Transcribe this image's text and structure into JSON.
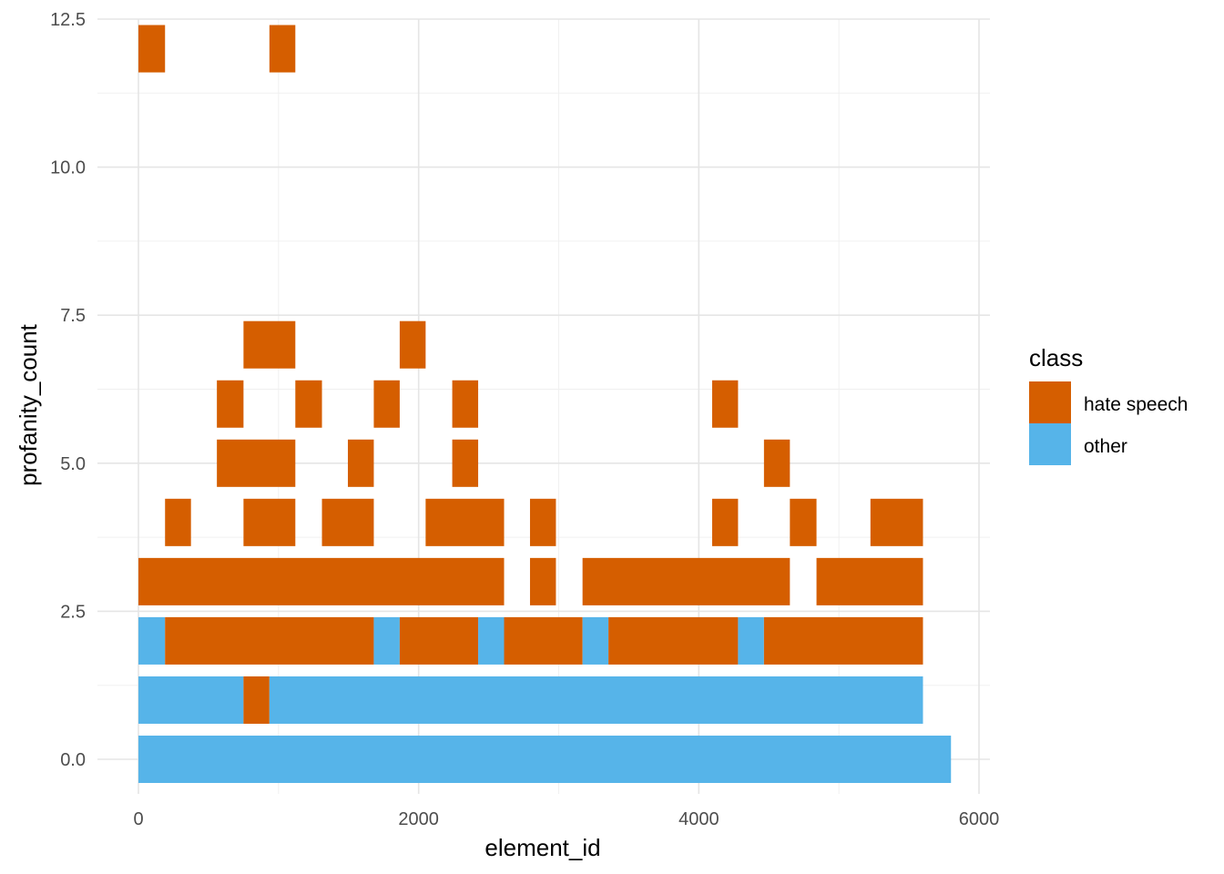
{
  "chart_data": {
    "type": "heatmap",
    "title": "",
    "xlabel": "element_id",
    "ylabel": "profanity_count",
    "xlim": [
      -300,
      6060
    ],
    "ylim": [
      -1.2,
      12.5
    ],
    "x_ticks": [
      0,
      2000,
      4000,
      6000
    ],
    "x_minor": [
      1000,
      3000,
      5000
    ],
    "y_ticks": [
      0.0,
      2.5,
      5.0,
      7.5,
      10.0,
      12.5
    ],
    "y_tick_labels": [
      "0.0",
      "2.5",
      "5.0",
      "7.5",
      "10.0",
      "12.5"
    ],
    "y_minor": [
      1.25,
      3.75,
      6.25,
      8.75,
      11.25
    ],
    "grid": true,
    "legend": {
      "title": "class",
      "placement": "right",
      "entries": [
        {
          "label": "hate speech",
          "color": "#D55E00"
        },
        {
          "label": "other",
          "color": "#56B4E9"
        }
      ]
    },
    "bin_width_x": 185,
    "bin_height_y": 0.8,
    "tiles": [
      {
        "x0": 0,
        "x1": 5800,
        "y": 0,
        "class": "other"
      },
      {
        "x0": 0,
        "x1": 750,
        "y": 1,
        "class": "other"
      },
      {
        "x0": 750,
        "x1": 935,
        "y": 1,
        "class": "hate speech"
      },
      {
        "x0": 935,
        "x1": 5600,
        "y": 1,
        "class": "other"
      },
      {
        "x0": 0,
        "x1": 190,
        "y": 2,
        "class": "other"
      },
      {
        "x0": 190,
        "x1": 1680,
        "y": 2,
        "class": "hate speech"
      },
      {
        "x0": 1680,
        "x1": 1865,
        "y": 2,
        "class": "other"
      },
      {
        "x0": 1865,
        "x1": 2425,
        "y": 2,
        "class": "hate speech"
      },
      {
        "x0": 2425,
        "x1": 2610,
        "y": 2,
        "class": "other"
      },
      {
        "x0": 2610,
        "x1": 3170,
        "y": 2,
        "class": "hate speech"
      },
      {
        "x0": 3170,
        "x1": 3355,
        "y": 2,
        "class": "other"
      },
      {
        "x0": 3355,
        "x1": 4280,
        "y": 2,
        "class": "hate speech"
      },
      {
        "x0": 4280,
        "x1": 4465,
        "y": 2,
        "class": "other"
      },
      {
        "x0": 4465,
        "x1": 5600,
        "y": 2,
        "class": "hate speech"
      },
      {
        "x0": 0,
        "x1": 2610,
        "y": 3,
        "class": "hate speech"
      },
      {
        "x0": 2795,
        "x1": 2980,
        "y": 3,
        "class": "hate speech"
      },
      {
        "x0": 3170,
        "x1": 4650,
        "y": 3,
        "class": "hate speech"
      },
      {
        "x0": 4840,
        "x1": 5600,
        "y": 3,
        "class": "hate speech"
      },
      {
        "x0": 190,
        "x1": 375,
        "y": 4,
        "class": "hate speech"
      },
      {
        "x0": 750,
        "x1": 1120,
        "y": 4,
        "class": "hate speech"
      },
      {
        "x0": 1310,
        "x1": 1680,
        "y": 4,
        "class": "hate speech"
      },
      {
        "x0": 2050,
        "x1": 2610,
        "y": 4,
        "class": "hate speech"
      },
      {
        "x0": 2795,
        "x1": 2980,
        "y": 4,
        "class": "hate speech"
      },
      {
        "x0": 4095,
        "x1": 4280,
        "y": 4,
        "class": "hate speech"
      },
      {
        "x0": 4650,
        "x1": 4840,
        "y": 4,
        "class": "hate speech"
      },
      {
        "x0": 5225,
        "x1": 5600,
        "y": 4,
        "class": "hate speech"
      },
      {
        "x0": 560,
        "x1": 1120,
        "y": 5,
        "class": "hate speech"
      },
      {
        "x0": 1495,
        "x1": 1680,
        "y": 5,
        "class": "hate speech"
      },
      {
        "x0": 2240,
        "x1": 2425,
        "y": 5,
        "class": "hate speech"
      },
      {
        "x0": 4465,
        "x1": 4650,
        "y": 5,
        "class": "hate speech"
      },
      {
        "x0": 560,
        "x1": 750,
        "y": 6,
        "class": "hate speech"
      },
      {
        "x0": 1120,
        "x1": 1310,
        "y": 6,
        "class": "hate speech"
      },
      {
        "x0": 1680,
        "x1": 1865,
        "y": 6,
        "class": "hate speech"
      },
      {
        "x0": 2240,
        "x1": 2425,
        "y": 6,
        "class": "hate speech"
      },
      {
        "x0": 4095,
        "x1": 4280,
        "y": 6,
        "class": "hate speech"
      },
      {
        "x0": 750,
        "x1": 1120,
        "y": 7,
        "class": "hate speech"
      },
      {
        "x0": 1865,
        "x1": 2050,
        "y": 7,
        "class": "hate speech"
      },
      {
        "x0": 0,
        "x1": 190,
        "y": 12,
        "class": "hate speech"
      },
      {
        "x0": 935,
        "x1": 1120,
        "y": 12,
        "class": "hate speech"
      }
    ]
  }
}
